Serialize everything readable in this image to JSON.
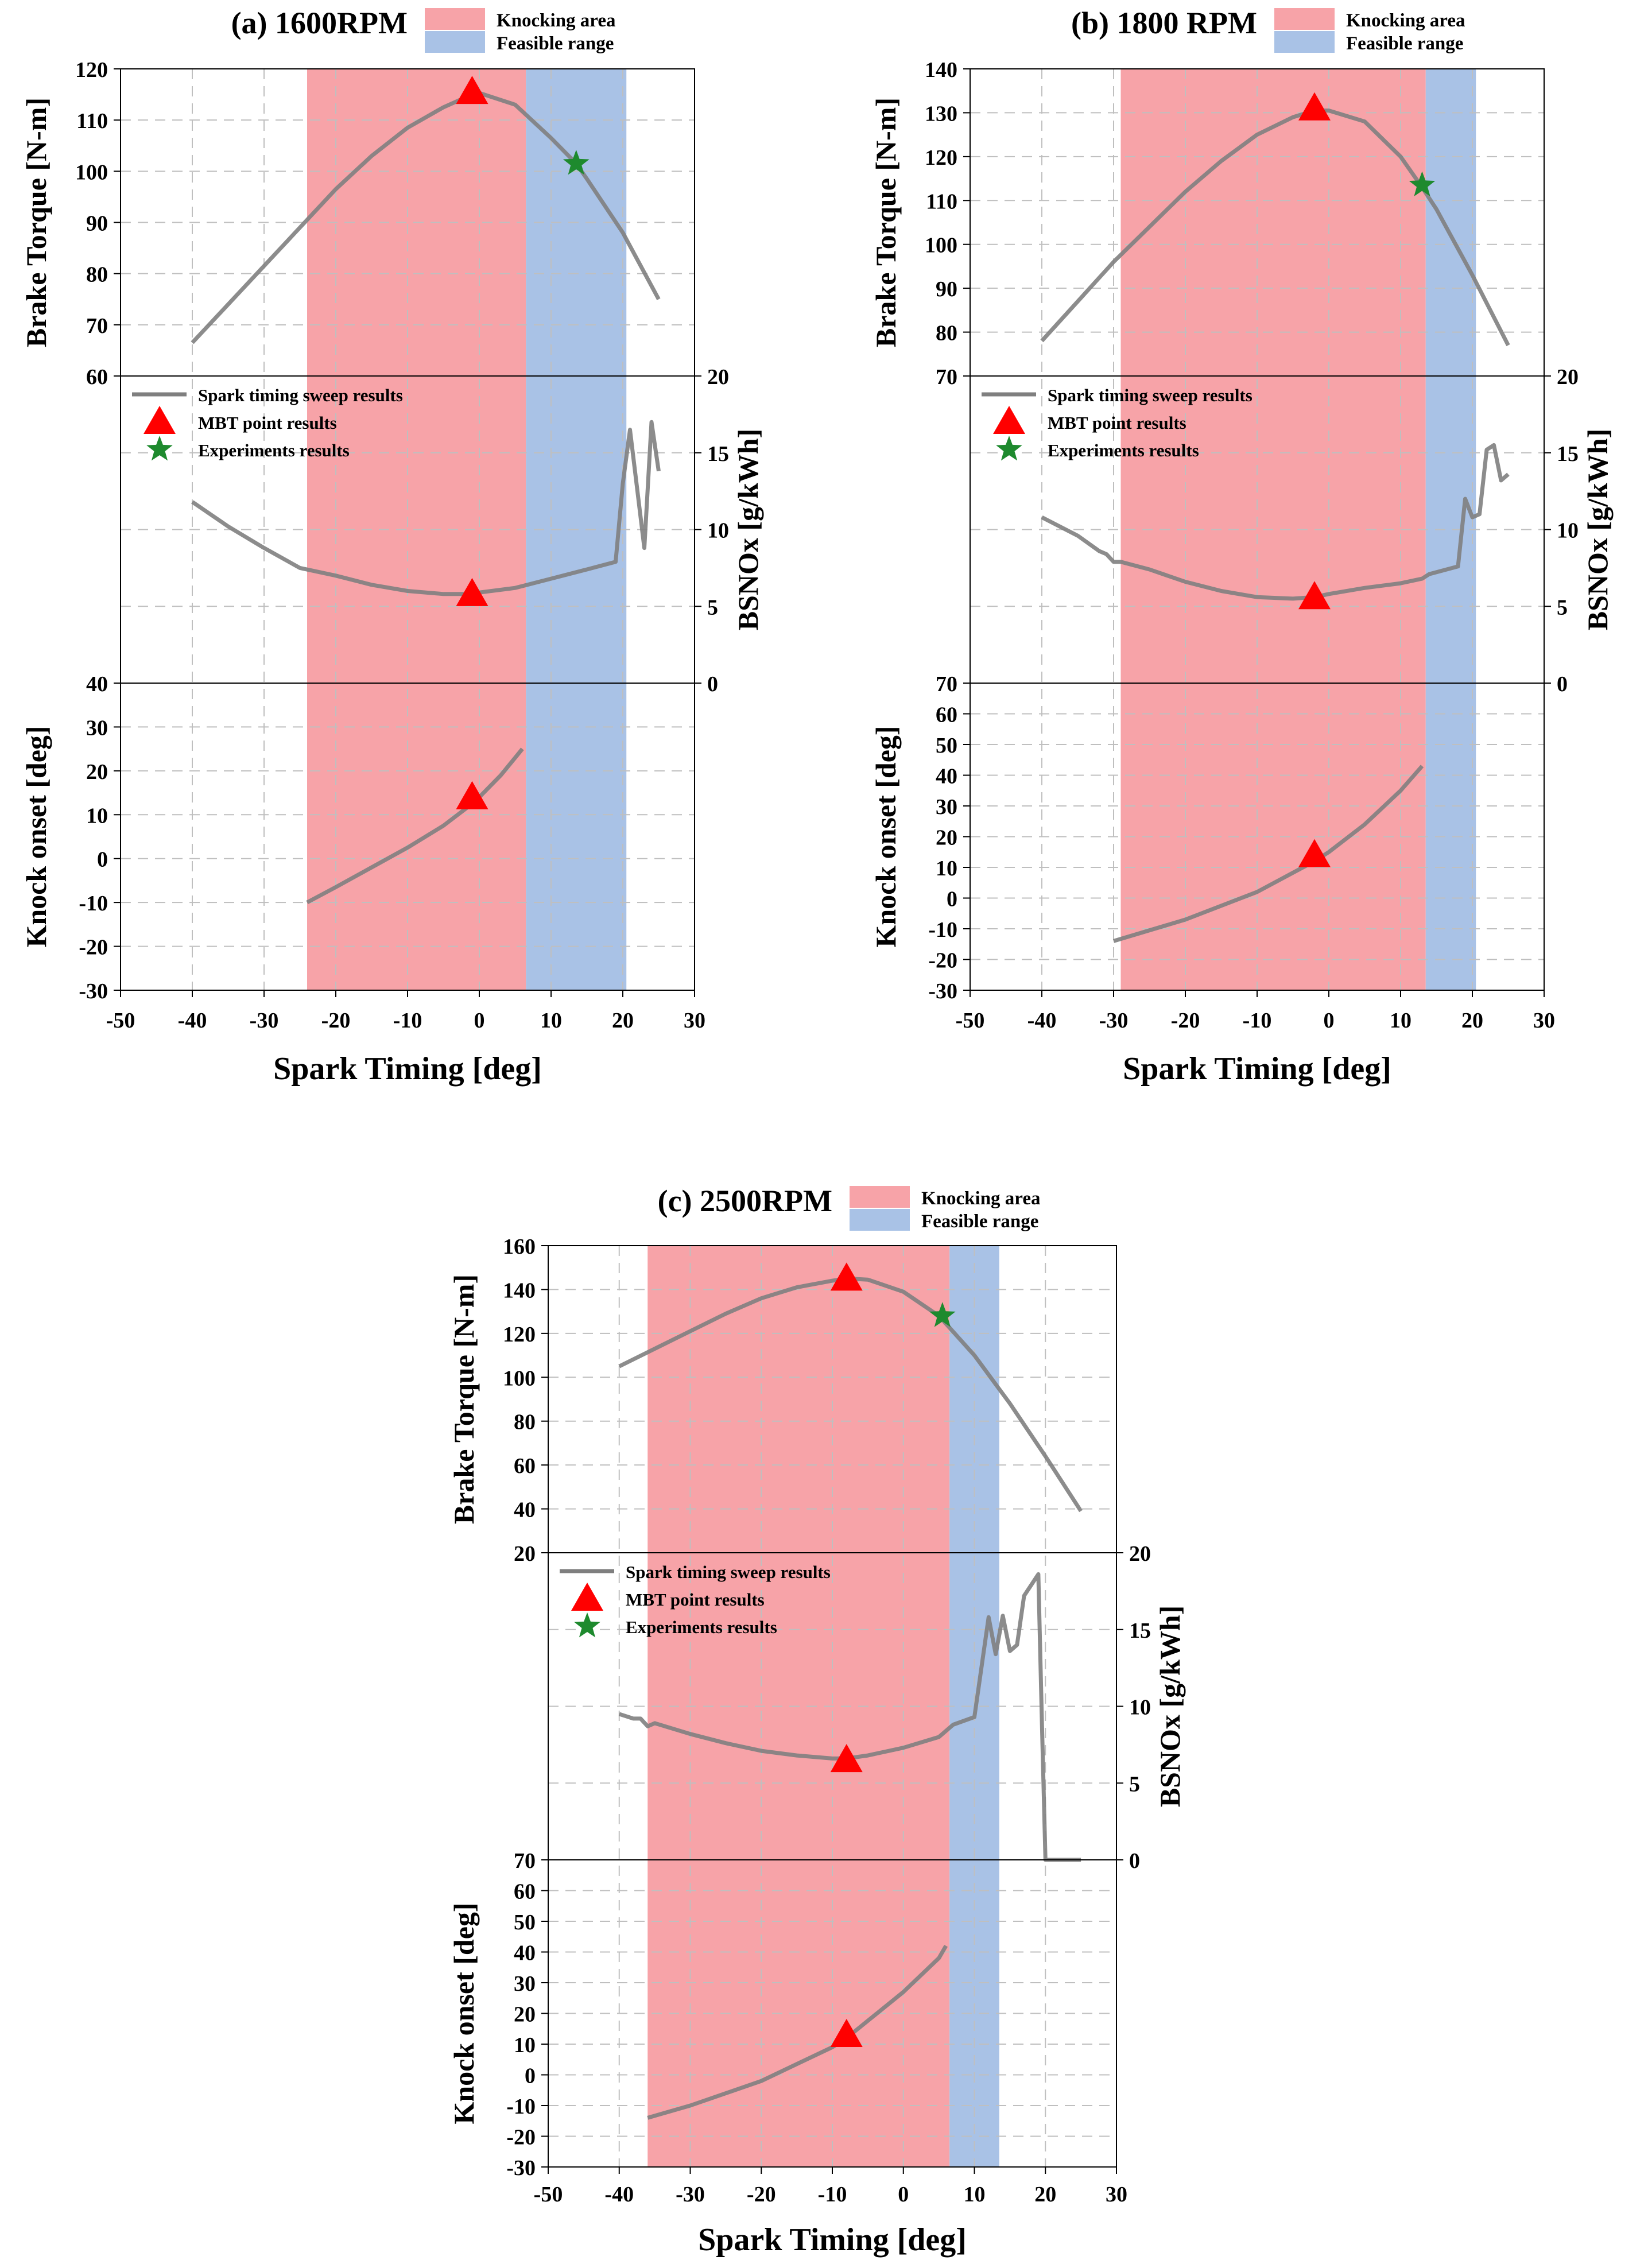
{
  "figure": {
    "legend_labels": {
      "sweep": "Spark timing sweep results",
      "mbt": "MBT point results",
      "exp": "Experiments results",
      "knock": "Knocking area",
      "feasible": "Feasible range"
    },
    "colors": {
      "knock_fill": "#f7a3a8",
      "feasible_fill": "#a9c2e6",
      "sweep_line": "#7f7f7f",
      "sweep_line_in_knock": "#b5666a",
      "mbt_marker": "#ff0000",
      "exp_marker": "#1e8a2e",
      "grid": "#bfbfbf"
    }
  },
  "chart_data": [
    {
      "type": "line",
      "title": "(a) 1600RPM",
      "xlabel": "Spark Timing [deg]",
      "xlim": [
        -50,
        30
      ],
      "xticks": [
        -50,
        -40,
        -30,
        -20,
        -10,
        0,
        10,
        20,
        30
      ],
      "knock_range": [
        -24,
        6.5
      ],
      "feasible_range": [
        6.5,
        20.5
      ],
      "panels": [
        {
          "key": "torque",
          "ylabel": "Brake Torque [N-m]",
          "ylim": [
            60,
            120
          ],
          "yticks": [
            60,
            70,
            80,
            90,
            100,
            110,
            120
          ],
          "axis": "left",
          "series": {
            "x": [
              -40,
              -35,
              -30,
              -25,
              -20,
              -15,
              -10,
              -5,
              -1,
              0,
              5,
              10,
              13.5,
              15,
              20,
              25
            ],
            "y": [
              66.5,
              74,
              81.5,
              89,
              96.5,
              103,
              108.5,
              112.5,
              115,
              115.3,
              113,
              106.5,
              101.5,
              98.5,
              88,
              75
            ]
          },
          "mbt": [
            -1,
            115.5
          ],
          "exp": [
            13.5,
            101.5
          ]
        },
        {
          "key": "bsnox",
          "ylabel": "BSNOx [g/kWh]",
          "ylim": [
            0,
            20
          ],
          "yticks": [
            0,
            5,
            10,
            15,
            20
          ],
          "axis": "right",
          "series": {
            "x": [
              -40,
              -35,
              -30,
              -25,
              -20,
              -15,
              -10,
              -5,
              -1,
              0,
              5,
              10,
              15,
              19,
              20,
              21,
              23,
              24,
              25
            ],
            "y": [
              11.8,
              10.2,
              8.8,
              7.5,
              7,
              6.4,
              6,
              5.8,
              5.8,
              5.9,
              6.2,
              6.8,
              7.4,
              7.9,
              13,
              16.5,
              8.8,
              17,
              13.8
            ]
          },
          "mbt": [
            -1,
            5.8
          ]
        },
        {
          "key": "knock",
          "ylabel": "Knock onset [deg]",
          "ylim": [
            -30,
            40
          ],
          "yticks": [
            -30,
            -20,
            -10,
            0,
            10,
            20,
            30,
            40
          ],
          "axis": "left",
          "series": {
            "x": [
              -24,
              -20,
              -15,
              -10,
              -5,
              -1,
              0,
              3,
              6
            ],
            "y": [
              -10,
              -6.5,
              -2,
              2.5,
              7.5,
              12.5,
              14,
              19,
              25
            ]
          },
          "mbt": [
            -1,
            14
          ]
        }
      ]
    },
    {
      "type": "line",
      "title": "(b) 1800 RPM",
      "xlabel": "Spark Timing [deg]",
      "xlim": [
        -50,
        30
      ],
      "xticks": [
        -50,
        -40,
        -30,
        -20,
        -10,
        0,
        10,
        20,
        30
      ],
      "knock_range": [
        -29,
        13.5
      ],
      "feasible_range": [
        13.5,
        20.5
      ],
      "panels": [
        {
          "key": "torque",
          "ylabel": "Brake Torque [N-m]",
          "ylim": [
            70,
            140
          ],
          "yticks": [
            70,
            80,
            90,
            100,
            110,
            120,
            130,
            140
          ],
          "axis": "left",
          "series": {
            "x": [
              -40,
              -35,
              -30,
              -25,
              -20,
              -15,
              -10,
              -5,
              -2,
              0,
              5,
              10,
              13,
              15,
              20,
              25
            ],
            "y": [
              78,
              87,
              96,
              104,
              112,
              119,
              125,
              129,
              130.5,
              130.5,
              128,
              120,
              113,
              108,
              93,
              77
            ]
          },
          "mbt": [
            -2,
            131
          ],
          "exp": [
            13,
            113.5
          ]
        },
        {
          "key": "bsnox",
          "ylabel": "BSNOx [g/kWh]",
          "ylim": [
            0,
            20
          ],
          "yticks": [
            0,
            5,
            10,
            15,
            20
          ],
          "axis": "right",
          "series": {
            "x": [
              -40,
              -35,
              -32,
              -31,
              -30,
              -29,
              -25,
              -20,
              -15,
              -10,
              -5,
              -2,
              0,
              5,
              10,
              13,
              14,
              18,
              19,
              20,
              21,
              22,
              23,
              24,
              25
            ],
            "y": [
              10.8,
              9.6,
              8.6,
              8.4,
              7.9,
              7.9,
              7.4,
              6.6,
              6,
              5.6,
              5.5,
              5.6,
              5.8,
              6.2,
              6.5,
              6.8,
              7.1,
              7.6,
              12,
              10.8,
              11,
              15.2,
              15.5,
              13.2,
              13.6
            ]
          },
          "mbt": [
            -2,
            5.6
          ]
        },
        {
          "key": "knock",
          "ylabel": "Knock onset [deg]",
          "ylim": [
            -30,
            70
          ],
          "yticks": [
            -30,
            -20,
            -10,
            0,
            10,
            20,
            30,
            40,
            50,
            60,
            70
          ],
          "axis": "left",
          "series": {
            "x": [
              -40,
              -30,
              -20,
              -10,
              -2,
              0,
              5,
              10,
              13
            ],
            "y": [
              null,
              -14,
              -7,
              2,
              12,
              15,
              24,
              35,
              43
            ]
          },
          "mbt": [
            -2,
            14
          ]
        }
      ]
    },
    {
      "type": "line",
      "title": "(c) 2500RPM",
      "xlabel": "Spark Timing [deg]",
      "xlim": [
        -50,
        30
      ],
      "xticks": [
        -50,
        -40,
        -30,
        -20,
        -10,
        0,
        10,
        20,
        30
      ],
      "knock_range": [
        -36,
        6.5
      ],
      "feasible_range": [
        6.5,
        13.5
      ],
      "panels": [
        {
          "key": "torque",
          "ylabel": "Brake Torque [N-m]",
          "ylim": [
            20,
            160
          ],
          "yticks": [
            20,
            40,
            60,
            80,
            100,
            120,
            140,
            160
          ],
          "axis": "left",
          "series": {
            "x": [
              -40,
              -35,
              -30,
              -25,
              -20,
              -15,
              -10,
              -8,
              -5,
              0,
              5,
              10,
              15,
              20,
              25
            ],
            "y": [
              105,
              113,
              121,
              129,
              136,
              141,
              144,
              145,
              144.5,
              139,
              128,
              110,
              88,
              64,
              39
            ]
          },
          "mbt": [
            -8,
            145
          ],
          "exp": [
            5.5,
            128
          ]
        },
        {
          "key": "bsnox",
          "ylabel": "BSNOx [g/kWh]",
          "ylim": [
            0,
            20
          ],
          "yticks": [
            0,
            5,
            10,
            15,
            20
          ],
          "axis": "right",
          "series": {
            "x": [
              -40,
              -38,
              -37,
              -36,
              -35,
              -30,
              -25,
              -20,
              -15,
              -10,
              -8,
              -5,
              0,
              5,
              7,
              10,
              12,
              13,
              14,
              15,
              16,
              17,
              19,
              19.5,
              20,
              25
            ],
            "y": [
              9.5,
              9.2,
              9.2,
              8.7,
              8.9,
              8.2,
              7.6,
              7.1,
              6.8,
              6.6,
              6.6,
              6.8,
              7.3,
              8,
              8.8,
              9.3,
              15.8,
              13.4,
              15.9,
              13.6,
              14,
              17.2,
              18.6,
              9,
              0,
              0
            ]
          },
          "mbt": [
            -8,
            6.5
          ]
        },
        {
          "key": "knock",
          "ylabel": "Knock onset [deg]",
          "ylim": [
            -30,
            70
          ],
          "yticks": [
            -30,
            -20,
            -10,
            0,
            10,
            20,
            30,
            40,
            50,
            60,
            70
          ],
          "axis": "left",
          "series": {
            "x": [
              -36,
              -30,
              -20,
              -10,
              -8,
              0,
              5,
              6
            ],
            "y": [
              -14,
              -10,
              -2,
              9,
              12,
              27,
              38,
              42
            ]
          },
          "mbt": [
            -8,
            13
          ]
        }
      ]
    }
  ]
}
